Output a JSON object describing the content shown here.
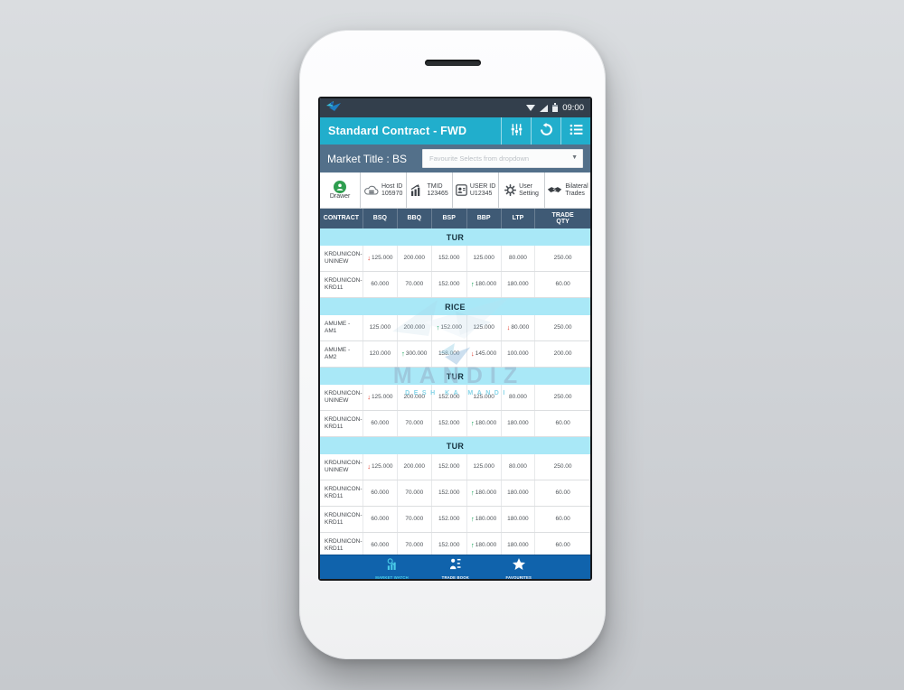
{
  "status_bar": {
    "time": "09:00"
  },
  "header": {
    "title": "Standard Contract - FWD",
    "actions": [
      {
        "id": "filter",
        "icon": "sliders-icon"
      },
      {
        "id": "refresh",
        "icon": "refresh-icon"
      },
      {
        "id": "menu",
        "icon": "list-menu-icon"
      }
    ]
  },
  "market": {
    "label": "Market Title : BS",
    "dropdown_placeholder": "Favourite Selects from dropdown"
  },
  "toolbar": {
    "items": [
      {
        "id": "drawer",
        "icon": "person-circle",
        "lines": [
          "Drawer"
        ]
      },
      {
        "id": "host-id",
        "icon": "cloud-host",
        "lines": [
          "Host ID",
          "105970"
        ]
      },
      {
        "id": "tmid",
        "icon": "chart-trend",
        "lines": [
          "TMID",
          "123465"
        ]
      },
      {
        "id": "user-id",
        "icon": "user-badge",
        "lines": [
          "USER ID",
          "U12345"
        ]
      },
      {
        "id": "user-setting",
        "icon": "gear",
        "lines": [
          "User",
          "Setting"
        ]
      },
      {
        "id": "bilateral-trades",
        "icon": "handshake",
        "lines": [
          "Bilateral",
          "Trades"
        ]
      }
    ]
  },
  "table": {
    "columns": [
      "CONTRACT",
      "BSQ",
      "BBQ",
      "BSP",
      "BBP",
      "LTP",
      "TRADE QTY"
    ],
    "sections": [
      {
        "name": "TUR",
        "rows": [
          {
            "contract": "KRDUNICON-UNINEW",
            "cells": [
              {
                "value": "125.000",
                "trend": "down"
              },
              {
                "value": "200.000"
              },
              {
                "value": "152.000"
              },
              {
                "value": "125.000"
              },
              {
                "value": "80.000"
              },
              {
                "value": "250.00"
              }
            ]
          },
          {
            "contract": "KRDUNICON-KRD11",
            "cells": [
              {
                "value": "60.000"
              },
              {
                "value": "70.000"
              },
              {
                "value": "152.000"
              },
              {
                "value": "180.000",
                "trend": "up"
              },
              {
                "value": "180.000"
              },
              {
                "value": "60.00"
              }
            ]
          }
        ]
      },
      {
        "name": "RICE",
        "rows": [
          {
            "contract": "AMUME - AM1",
            "cells": [
              {
                "value": "125.000"
              },
              {
                "value": "200.000"
              },
              {
                "value": "152.000",
                "trend": "up"
              },
              {
                "value": "125.000"
              },
              {
                "value": "80.000",
                "trend": "down"
              },
              {
                "value": "250.00"
              }
            ]
          },
          {
            "contract": "AMUME - AM2",
            "cells": [
              {
                "value": "120.000"
              },
              {
                "value": "300.000",
                "trend": "up"
              },
              {
                "value": "158.000"
              },
              {
                "value": "145.000",
                "trend": "down"
              },
              {
                "value": "100.000"
              },
              {
                "value": "200.00"
              }
            ]
          }
        ]
      },
      {
        "name": "TUR",
        "rows": [
          {
            "contract": "KRDUNICON-UNINEW",
            "cells": [
              {
                "value": "125.000",
                "trend": "down"
              },
              {
                "value": "200.000"
              },
              {
                "value": "152.000"
              },
              {
                "value": "125.000"
              },
              {
                "value": "80.000"
              },
              {
                "value": "250.00"
              }
            ]
          },
          {
            "contract": "KRDUNICON-KRD11",
            "cells": [
              {
                "value": "60.000"
              },
              {
                "value": "70.000"
              },
              {
                "value": "152.000"
              },
              {
                "value": "180.000",
                "trend": "up"
              },
              {
                "value": "180.000"
              },
              {
                "value": "60.00"
              }
            ]
          }
        ]
      },
      {
        "name": "TUR",
        "rows": [
          {
            "contract": "KRDUNICON-UNINEW",
            "cells": [
              {
                "value": "125.000",
                "trend": "down"
              },
              {
                "value": "200.000"
              },
              {
                "value": "152.000"
              },
              {
                "value": "125.000"
              },
              {
                "value": "80.000"
              },
              {
                "value": "250.00"
              }
            ]
          },
          {
            "contract": "KRDUNICON-KRD11",
            "cells": [
              {
                "value": "60.000"
              },
              {
                "value": "70.000"
              },
              {
                "value": "152.000"
              },
              {
                "value": "180.000",
                "trend": "up"
              },
              {
                "value": "180.000"
              },
              {
                "value": "60.00"
              }
            ]
          },
          {
            "contract": "KRDUNICON-KRD11",
            "cells": [
              {
                "value": "60.000"
              },
              {
                "value": "70.000"
              },
              {
                "value": "152.000"
              },
              {
                "value": "180.000",
                "trend": "up"
              },
              {
                "value": "180.000"
              },
              {
                "value": "60.00"
              }
            ]
          },
          {
            "contract": "KRDUNICON-KRD11",
            "cells": [
              {
                "value": "60.000"
              },
              {
                "value": "70.000"
              },
              {
                "value": "152.000"
              },
              {
                "value": "180.000",
                "trend": "up"
              },
              {
                "value": "180.000"
              },
              {
                "value": "60.00"
              }
            ]
          }
        ]
      }
    ]
  },
  "watermark": {
    "brand": "MANDIZ",
    "tagline": "DESH KA MANDI"
  },
  "bottom_nav": {
    "items": [
      {
        "id": "market-watch",
        "label": "MARKET WATCH",
        "icon": "market-watch",
        "active": true
      },
      {
        "id": "trade-book",
        "label": "TRADE BOOK",
        "icon": "trade-book",
        "active": false
      },
      {
        "id": "favourites",
        "label": "FAVOURITES",
        "icon": "star",
        "active": false
      }
    ]
  },
  "colors": {
    "header_teal": "#21AECC",
    "statusbar_dark": "#333F4C",
    "market_slate": "#53708A",
    "table_header_navy": "#3F5A75",
    "section_cyan": "#A9E8F7",
    "nav_blue": "#1063AC",
    "up_green": "#089D4F",
    "down_red": "#DF2B1C",
    "drawer_green": "#2E9E4F"
  }
}
